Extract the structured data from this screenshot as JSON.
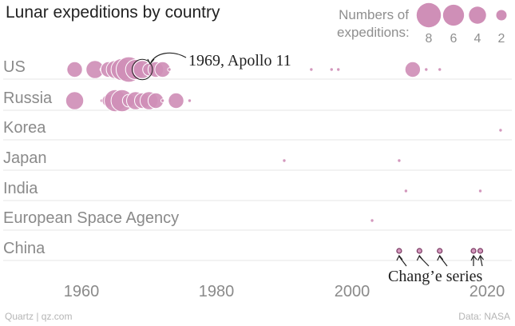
{
  "title": "Lunar expeditions by country",
  "legend": {
    "label": "Numbers of expeditions:",
    "sizes": [
      8,
      6,
      4,
      2
    ]
  },
  "footer": {
    "source_left": "Quartz | qz.com",
    "source_right": "Data: NASA"
  },
  "annotations": {
    "apollo": "1969, Apollo 11",
    "change": "Chang’e series"
  },
  "colors": {
    "bubble": "#cf8fb7",
    "bubble_stroke": "#ffffff",
    "grid": "#e6e6e6",
    "text_muted": "#8a8a8a",
    "change_stroke": "#7a3b63"
  },
  "chart_data": {
    "type": "scatter",
    "title": "Lunar expeditions by country",
    "xlabel": "",
    "ylabel": "",
    "xlim": [
      1950,
      2022
    ],
    "xticks": [
      1960,
      1980,
      2000,
      2020
    ],
    "xtick_labels": [
      "1960",
      "1980",
      "2000",
      "2020"
    ],
    "grid": true,
    "size_legend": [
      8,
      6,
      4,
      2
    ],
    "categories": [
      "US",
      "Russia",
      "Korea",
      "Japan",
      "India",
      "European Space Agency",
      "China"
    ],
    "series": [
      {
        "category": "US",
        "points": [
          {
            "x": 1958,
            "n": 1
          },
          {
            "x": 1959,
            "n": 3
          },
          {
            "x": 1962,
            "n": 4
          },
          {
            "x": 1963,
            "n": 1
          },
          {
            "x": 1964,
            "n": 3
          },
          {
            "x": 1965,
            "n": 4
          },
          {
            "x": 1966,
            "n": 6
          },
          {
            "x": 1967,
            "n": 8
          },
          {
            "x": 1968,
            "n": 5
          },
          {
            "x": 1969,
            "n": 4
          },
          {
            "x": 1970,
            "n": 2
          },
          {
            "x": 1971,
            "n": 3
          },
          {
            "x": 1972,
            "n": 3
          },
          {
            "x": 1973,
            "n": 1
          },
          {
            "x": 1994,
            "n": 1
          },
          {
            "x": 1997,
            "n": 1
          },
          {
            "x": 1998,
            "n": 1
          },
          {
            "x": 2009,
            "n": 3
          },
          {
            "x": 2011,
            "n": 1
          },
          {
            "x": 2013,
            "n": 1
          }
        ]
      },
      {
        "category": "Russia",
        "points": [
          {
            "x": 1959,
            "n": 4
          },
          {
            "x": 1963,
            "n": 1
          },
          {
            "x": 1964,
            "n": 2
          },
          {
            "x": 1965,
            "n": 6
          },
          {
            "x": 1966,
            "n": 6
          },
          {
            "x": 1967,
            "n": 2
          },
          {
            "x": 1968,
            "n": 4
          },
          {
            "x": 1969,
            "n": 3
          },
          {
            "x": 1970,
            "n": 4
          },
          {
            "x": 1971,
            "n": 3
          },
          {
            "x": 1972,
            "n": 1
          },
          {
            "x": 1973,
            "n": 1
          },
          {
            "x": 1974,
            "n": 3
          },
          {
            "x": 1976,
            "n": 1
          }
        ]
      },
      {
        "category": "Korea",
        "points": [
          {
            "x": 2022,
            "n": 1
          }
        ]
      },
      {
        "category": "Japan",
        "points": [
          {
            "x": 1990,
            "n": 1
          },
          {
            "x": 2007,
            "n": 1
          }
        ]
      },
      {
        "category": "India",
        "points": [
          {
            "x": 2008,
            "n": 1
          },
          {
            "x": 2019,
            "n": 1
          }
        ]
      },
      {
        "category": "European Space Agency",
        "points": [
          {
            "x": 2003,
            "n": 1
          }
        ]
      },
      {
        "category": "China",
        "points": [
          {
            "x": 2007,
            "n": 1
          },
          {
            "x": 2010,
            "n": 1
          },
          {
            "x": 2013,
            "n": 1
          },
          {
            "x": 2018,
            "n": 1
          },
          {
            "x": 2019,
            "n": 1
          }
        ]
      }
    ]
  }
}
